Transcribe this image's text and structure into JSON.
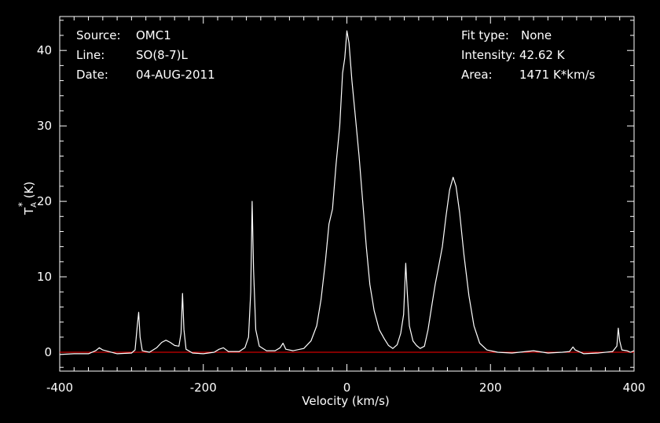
{
  "chart_data": {
    "type": "line",
    "xlabel": "Velocity (km/s)",
    "ylabel_main": "T",
    "ylabel_sub": "A",
    "ylabel_sup": "*",
    "ylabel_unit": " (K)",
    "xlim": [
      -400,
      400
    ],
    "ylim": [
      -2.5,
      44.5
    ],
    "x_ticks": [
      -400,
      -200,
      0,
      200,
      400
    ],
    "y_ticks": [
      0,
      10,
      20,
      30,
      40
    ],
    "baseline": 0,
    "baseline_color": "#ff0000",
    "line_color": "#ffffff",
    "background": "#000000",
    "grid": false,
    "info_left": [
      {
        "key": "Source:",
        "value": "OMC1"
      },
      {
        "key": "Line:",
        "value": "SO(8-7)L"
      },
      {
        "key": "Date:",
        "value": "04-AUG-2011"
      }
    ],
    "info_right": [
      {
        "key": "Fit type:",
        "value": "None"
      },
      {
        "key": "Intensity:",
        "value": "42.62 K"
      },
      {
        "key": "Area:",
        "value": "1471 K*km/s"
      }
    ],
    "series": [
      {
        "points": [
          [
            -400,
            -0.3
          ],
          [
            -380,
            -0.2
          ],
          [
            -360,
            -0.2
          ],
          [
            -350,
            0.2
          ],
          [
            -345,
            0.6
          ],
          [
            -340,
            0.3
          ],
          [
            -320,
            -0.2
          ],
          [
            -300,
            -0.1
          ],
          [
            -295,
            0.3
          ],
          [
            -292,
            3.5
          ],
          [
            -290,
            5.3
          ],
          [
            -288,
            2.0
          ],
          [
            -285,
            0.2
          ],
          [
            -275,
            0.0
          ],
          [
            -265,
            0.6
          ],
          [
            -258,
            1.3
          ],
          [
            -252,
            1.6
          ],
          [
            -246,
            1.3
          ],
          [
            -240,
            0.9
          ],
          [
            -234,
            0.8
          ],
          [
            -231,
            2.5
          ],
          [
            -229,
            7.8
          ],
          [
            -227,
            3.0
          ],
          [
            -224,
            0.4
          ],
          [
            -215,
            -0.1
          ],
          [
            -200,
            -0.2
          ],
          [
            -185,
            0.0
          ],
          [
            -178,
            0.4
          ],
          [
            -172,
            0.6
          ],
          [
            -165,
            0.1
          ],
          [
            -150,
            0.1
          ],
          [
            -142,
            0.6
          ],
          [
            -137,
            2.0
          ],
          [
            -134,
            8.0
          ],
          [
            -132,
            20.0
          ],
          [
            -130,
            11.0
          ],
          [
            -127,
            3.0
          ],
          [
            -122,
            0.8
          ],
          [
            -112,
            0.2
          ],
          [
            -100,
            0.2
          ],
          [
            -93,
            0.6
          ],
          [
            -89,
            1.2
          ],
          [
            -85,
            0.4
          ],
          [
            -75,
            0.2
          ],
          [
            -60,
            0.5
          ],
          [
            -50,
            1.5
          ],
          [
            -42,
            3.5
          ],
          [
            -36,
            7.0
          ],
          [
            -30,
            12.0
          ],
          [
            -25,
            17.0
          ],
          [
            -20,
            19.0
          ],
          [
            -15,
            25.0
          ],
          [
            -10,
            30.0
          ],
          [
            -6,
            37.0
          ],
          [
            -3,
            39.0
          ],
          [
            0,
            42.6
          ],
          [
            3,
            41.0
          ],
          [
            7,
            36.0
          ],
          [
            12,
            31.0
          ],
          [
            17,
            26.0
          ],
          [
            22,
            20.0
          ],
          [
            27,
            14.0
          ],
          [
            32,
            9.0
          ],
          [
            38,
            5.5
          ],
          [
            45,
            3.0
          ],
          [
            52,
            1.8
          ],
          [
            58,
            0.9
          ],
          [
            64,
            0.5
          ],
          [
            70,
            1.0
          ],
          [
            75,
            2.5
          ],
          [
            79,
            5.0
          ],
          [
            82,
            11.8
          ],
          [
            84,
            8.0
          ],
          [
            87,
            3.5
          ],
          [
            92,
            1.5
          ],
          [
            97,
            0.9
          ],
          [
            102,
            0.5
          ],
          [
            108,
            0.8
          ],
          [
            113,
            3.0
          ],
          [
            118,
            6.0
          ],
          [
            123,
            9.0
          ],
          [
            128,
            11.5
          ],
          [
            133,
            14.0
          ],
          [
            138,
            18.0
          ],
          [
            143,
            21.5
          ],
          [
            148,
            23.2
          ],
          [
            152,
            22.0
          ],
          [
            157,
            18.5
          ],
          [
            163,
            13.0
          ],
          [
            170,
            7.5
          ],
          [
            177,
            3.5
          ],
          [
            185,
            1.2
          ],
          [
            195,
            0.3
          ],
          [
            210,
            0.0
          ],
          [
            230,
            -0.1
          ],
          [
            260,
            0.2
          ],
          [
            280,
            -0.1
          ],
          [
            300,
            0.0
          ],
          [
            310,
            0.1
          ],
          [
            315,
            0.7
          ],
          [
            318,
            0.3
          ],
          [
            330,
            -0.2
          ],
          [
            350,
            -0.1
          ],
          [
            370,
            0.1
          ],
          [
            376,
            0.8
          ],
          [
            378,
            3.2
          ],
          [
            380,
            1.5
          ],
          [
            383,
            0.3
          ],
          [
            390,
            0.2
          ],
          [
            395,
            0.0
          ],
          [
            400,
            0.2
          ]
        ]
      }
    ]
  }
}
